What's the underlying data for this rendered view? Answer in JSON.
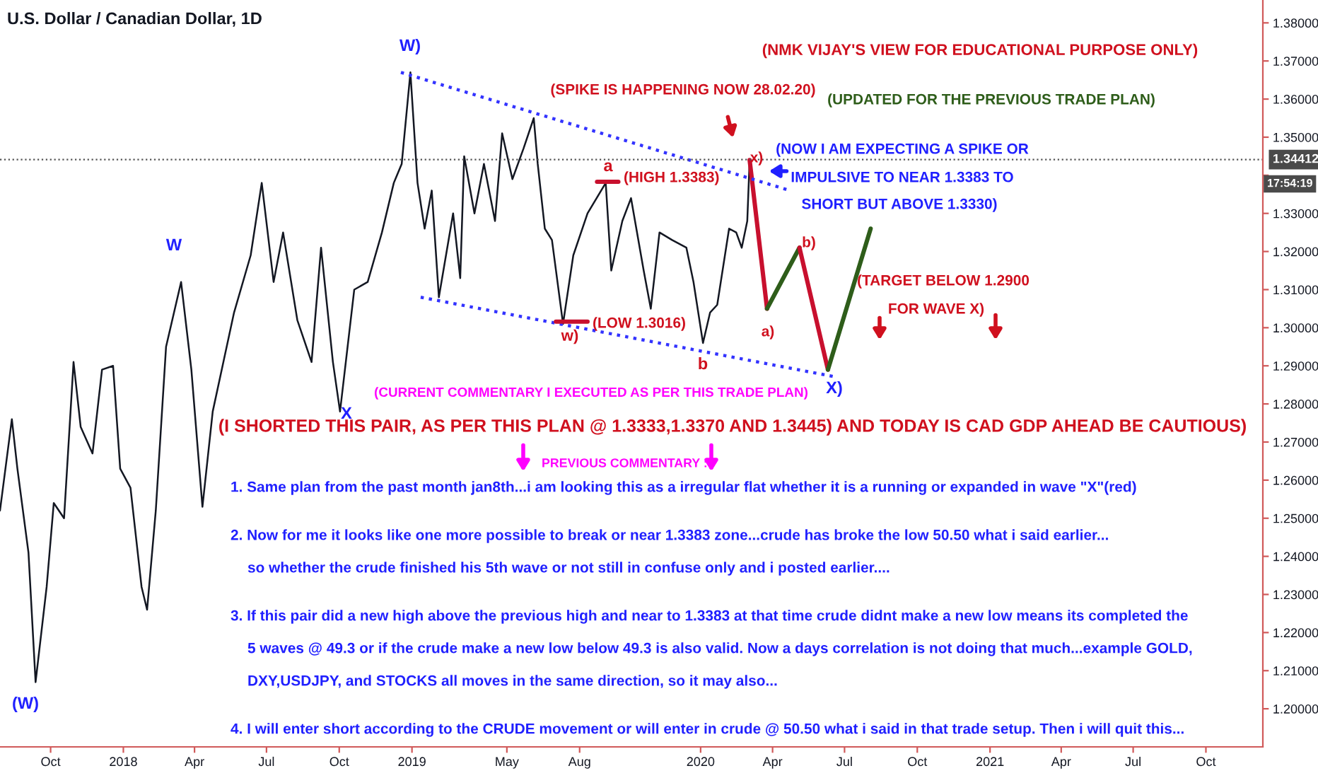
{
  "chart_data": {
    "type": "line",
    "title": "U.S. Dollar / Canadian Dollar, 1D",
    "xlim": [
      "2017-07-29",
      "2021-12-12"
    ],
    "xticks": [
      {
        "value": "2017-10-01",
        "label": "Oct"
      },
      {
        "value": "2018-01-01",
        "label": "2018"
      },
      {
        "value": "2018-04-01",
        "label": "Apr"
      },
      {
        "value": "2018-07-01",
        "label": "Jul"
      },
      {
        "value": "2018-10-01",
        "label": "Oct"
      },
      {
        "value": "2019-01-01",
        "label": "2019"
      },
      {
        "value": "2019-05-01",
        "label": "May"
      },
      {
        "value": "2019-08-01",
        "label": "Aug"
      },
      {
        "value": "2020-01-01",
        "label": "2020"
      },
      {
        "value": "2020-04-01",
        "label": "Apr"
      },
      {
        "value": "2020-07-01",
        "label": "Jul"
      },
      {
        "value": "2020-10-01",
        "label": "Oct"
      },
      {
        "value": "2021-01-01",
        "label": "2021"
      },
      {
        "value": "2021-04-01",
        "label": "Apr"
      },
      {
        "value": "2021-07-01",
        "label": "Jul"
      },
      {
        "value": "2021-10-01",
        "label": "Oct"
      }
    ],
    "ylim": [
      1.19,
      1.386
    ],
    "yticks": [
      {
        "value": 1.2,
        "label": "1.20000"
      },
      {
        "value": 1.21,
        "label": "1.21000"
      },
      {
        "value": 1.22,
        "label": "1.22000"
      },
      {
        "value": 1.23,
        "label": "1.23000"
      },
      {
        "value": 1.24,
        "label": "1.24000"
      },
      {
        "value": 1.25,
        "label": "1.25000"
      },
      {
        "value": 1.26,
        "label": "1.26000"
      },
      {
        "value": 1.27,
        "label": "1.27000"
      },
      {
        "value": 1.28,
        "label": "1.28000"
      },
      {
        "value": 1.29,
        "label": "1.29000"
      },
      {
        "value": 1.3,
        "label": "1.30000"
      },
      {
        "value": 1.31,
        "label": "1.31000"
      },
      {
        "value": 1.32,
        "label": "1.32000"
      },
      {
        "value": 1.33,
        "label": "1.33000"
      },
      {
        "value": 1.34,
        "label": null
      },
      {
        "value": 1.35,
        "label": "1.35000"
      },
      {
        "value": 1.36,
        "label": "1.36000"
      },
      {
        "value": 1.37,
        "label": "1.37000"
      },
      {
        "value": 1.38,
        "label": "1.38000"
      }
    ],
    "grid": false,
    "legend": false,
    "series": [
      {
        "color": "#131722",
        "x": [
          "2017-07-29",
          "2017-08-13",
          "2017-08-20",
          "2017-09-03",
          "2017-09-12",
          "2017-09-26",
          "2017-10-05",
          "2017-10-18",
          "2017-10-30",
          "2017-11-08",
          "2017-11-23",
          "2017-12-05",
          "2017-12-19",
          "2017-12-28",
          "2018-01-10",
          "2018-01-24",
          "2018-01-31",
          "2018-02-11",
          "2018-02-24",
          "2018-03-15",
          "2018-03-28",
          "2018-04-11",
          "2018-04-24",
          "2018-05-21",
          "2018-06-11",
          "2018-06-25",
          "2018-07-10",
          "2018-07-22",
          "2018-08-09",
          "2018-08-27",
          "2018-09-08",
          "2018-09-23",
          "2018-10-02",
          "2018-10-20",
          "2018-11-06",
          "2018-11-24",
          "2018-12-09",
          "2018-12-19",
          "2018-12-30",
          "2019-01-08",
          "2019-01-17",
          "2019-01-26",
          "2019-02-04",
          "2019-02-22",
          "2019-03-03",
          "2019-03-08",
          "2019-03-21",
          "2019-04-02",
          "2019-04-16",
          "2019-04-25",
          "2019-05-08",
          "2019-05-22",
          "2019-06-04",
          "2019-06-09",
          "2019-06-18",
          "2019-06-27",
          "2019-07-11",
          "2019-07-24",
          "2019-08-11",
          "2019-09-03",
          "2019-09-10",
          "2019-09-24",
          "2019-10-05",
          "2019-10-21",
          "2019-10-30",
          "2019-11-10",
          "2019-11-26",
          "2019-12-14",
          "2019-12-23",
          "2020-01-04",
          "2020-01-13",
          "2020-01-22",
          "2020-02-06",
          "2020-02-15",
          "2020-02-22",
          "2020-02-29",
          "2020-03-03"
        ],
        "values": [
          1.252,
          1.276,
          1.263,
          1.241,
          1.207,
          1.232,
          1.254,
          1.25,
          1.291,
          1.274,
          1.267,
          1.289,
          1.29,
          1.263,
          1.258,
          1.232,
          1.226,
          1.252,
          1.295,
          1.312,
          1.289,
          1.253,
          1.278,
          1.304,
          1.319,
          1.338,
          1.312,
          1.325,
          1.302,
          1.291,
          1.321,
          1.291,
          1.278,
          1.31,
          1.312,
          1.325,
          1.338,
          1.343,
          1.367,
          1.338,
          1.326,
          1.336,
          1.308,
          1.33,
          1.313,
          1.345,
          1.33,
          1.343,
          1.328,
          1.351,
          1.339,
          1.347,
          1.355,
          1.343,
          1.326,
          1.323,
          1.301,
          1.319,
          1.33,
          1.338,
          1.315,
          1.328,
          1.334,
          1.315,
          1.305,
          1.325,
          1.323,
          1.321,
          1.312,
          1.296,
          1.304,
          1.306,
          1.326,
          1.325,
          1.321,
          1.328,
          1.344
        ]
      },
      {
        "color": "#c8102e",
        "x": [
          "2020-03-03",
          "2020-03-25"
        ],
        "values": [
          1.344,
          1.305
        ]
      },
      {
        "color": "#2e5d1a",
        "x": [
          "2020-03-25",
          "2020-05-05"
        ],
        "values": [
          1.305,
          1.321
        ]
      },
      {
        "color": "#c8102e",
        "x": [
          "2020-05-05",
          "2020-06-10"
        ],
        "values": [
          1.321,
          1.289
        ]
      },
      {
        "color": "#2e5d1a",
        "x": [
          "2020-06-10",
          "2020-08-03"
        ],
        "values": [
          1.289,
          1.326
        ]
      },
      {
        "color": "#3333ff",
        "line_style": "dotted",
        "x": [
          "2018-12-18",
          "2020-04-23"
        ],
        "values": [
          1.367,
          1.336
        ]
      },
      {
        "color": "#3333ff",
        "line_style": "dotted",
        "x": [
          "2019-01-12",
          "2020-06-22"
        ],
        "values": [
          1.308,
          1.287
        ]
      },
      {
        "color": "#c8102e",
        "x": [
          "2019-08-23",
          "2019-09-19"
        ],
        "values": [
          1.3383,
          1.3383
        ]
      },
      {
        "color": "#c8102e",
        "x": [
          "2019-07-02",
          "2019-08-11"
        ],
        "values": [
          1.3016,
          1.3016
        ]
      }
    ],
    "ref_lines": [
      {
        "axis": "y",
        "value": 1.34412,
        "label": "1.34412",
        "color": "#555555",
        "line_style": "dotted"
      }
    ],
    "annotations": [
      "W)",
      "W",
      "X",
      "(W)",
      "a",
      "w)",
      "b",
      "x)",
      "a)",
      "b)",
      "X)",
      "(NMK VIJAY'S VIEW FOR EDUCATIONAL PURPOSE ONLY)",
      "(UPDATED FOR THE PREVIOUS TRADE PLAN)",
      "(SPIKE IS HAPPENING NOW 28.02.20)",
      "(NOW I AM EXPECTING A SPIKE OR",
      "IMPULSIVE TO NEAR 1.3383 TO",
      "SHORT BUT ABOVE 1.3330)",
      "(TARGET BELOW 1.2900",
      "FOR WAVE X)",
      "(HIGH 1.3383)",
      "(LOW 1.3016)",
      "(CURRENT COMMENTARY I EXECUTED AS PER THIS TRADE PLAN)",
      "(I SHORTED THIS PAIR, AS PER THIS PLAN @ 1.3333,1.3370 AND 1.3445) AND TODAY IS CAD GDP AHEAD BE CAUTIOUS)",
      "PREVIOUS COMMENTARY :",
      "1. Same plan from the past month jan8th...i am looking this as a irregular flat whether it is a running or expanded in wave \"X\"(red)",
      "2. Now for me it looks like one more possible to break or near 1.3383 zone...crude has broke the low 50.50 what i said earlier...",
      "so whether the crude finished his 5th wave or not still in confuse only and i posted earlier....",
      "3. If this pair did a new high above the previous high and near to 1.3383 at that time crude didnt make a new low means its completed the",
      "5 waves @ 49.3 or if the crude make a new low below 49.3 is also valid. Now a days correlation is not doing that much...example GOLD,",
      "DXY,USDJPY, and STOCKS all moves in the same direction, so it may also...",
      "4. I will enter short according to the CRUDE movement or will enter in crude @ 50.50 what i said in that trade setup. Then i will quit this...",
      "17:54:19"
    ]
  }
}
